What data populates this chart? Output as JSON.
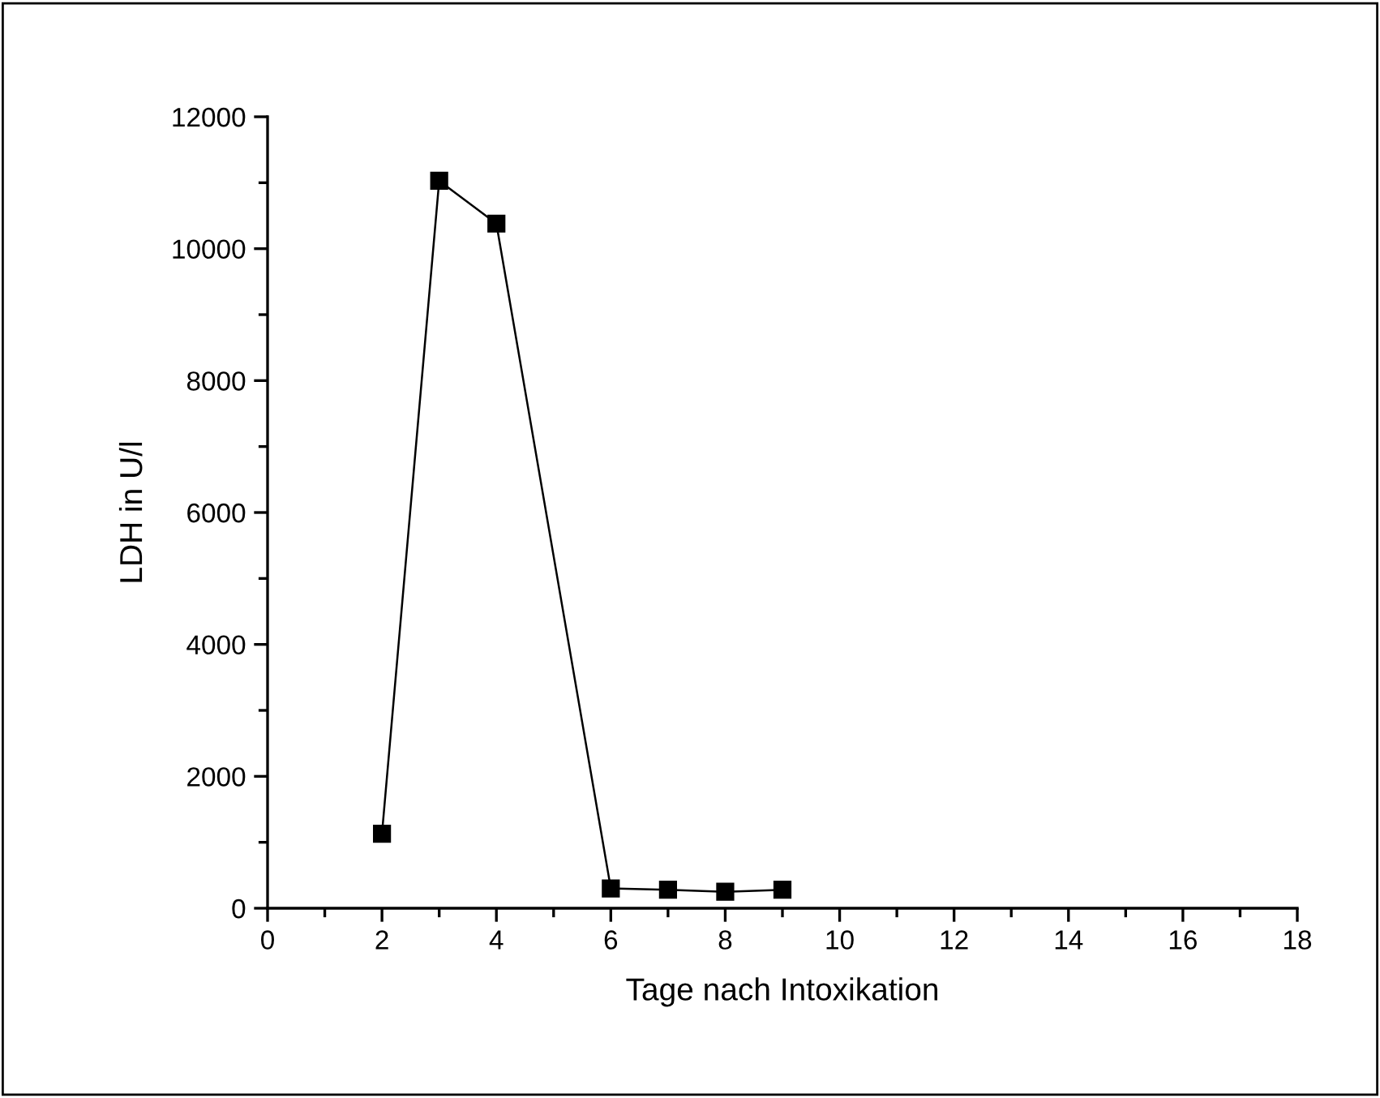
{
  "chart_data": {
    "type": "line",
    "xlabel": "Tage nach Intoxikation",
    "ylabel": "LDH in U/l",
    "x": [
      2,
      3,
      4,
      6,
      7,
      8,
      9
    ],
    "series": [
      {
        "color": "#000000",
        "values": [
          1130,
          11030,
          10380,
          300,
          280,
          250,
          280
        ]
      }
    ],
    "marker": "square",
    "line_style": "solid",
    "grid": false,
    "legend": false,
    "xlim": [
      0,
      18
    ],
    "xticks": [
      0,
      2,
      4,
      6,
      8,
      10,
      12,
      14,
      16,
      18
    ],
    "ylim": [
      0,
      12000
    ],
    "yticks": [
      0,
      2000,
      4000,
      6000,
      8000,
      10000,
      12000
    ]
  }
}
